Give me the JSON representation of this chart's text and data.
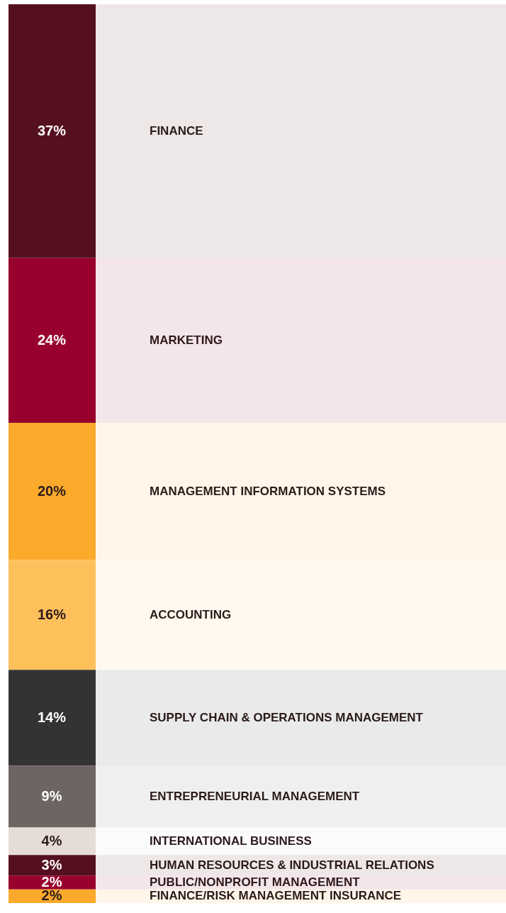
{
  "chart_data": {
    "type": "other",
    "categories": [
      "FINANCE",
      "MARKETING",
      "MANAGEMENT INFORMATION SYSTEMS",
      "ACCOUNTING",
      "SUPPLY CHAIN & OPERATIONS MANAGEMENT",
      "ENTREPRENEURIAL MANAGEMENT",
      "INTERNATIONAL BUSINESS",
      "HUMAN RESOURCES & INDUSTRIAL RELATIONS",
      "PUBLIC/NONPROFIT MANAGEMENT",
      "FINANCE/RISK MANAGEMENT INSURANCE"
    ],
    "values": [
      37,
      24,
      20,
      16,
      14,
      9,
      4,
      3,
      2,
      2
    ],
    "value_labels": [
      "37%",
      "24%",
      "20%",
      "16%",
      "14%",
      "9%",
      "4%",
      "3%",
      "2%",
      "2%"
    ],
    "colors": [
      "#55101f",
      "#98002e",
      "#fbaa2c",
      "#fec05a",
      "#333333",
      "#6d6562",
      "#e5dcd8",
      "#55101f",
      "#98002e",
      "#fbaa2c"
    ]
  }
}
